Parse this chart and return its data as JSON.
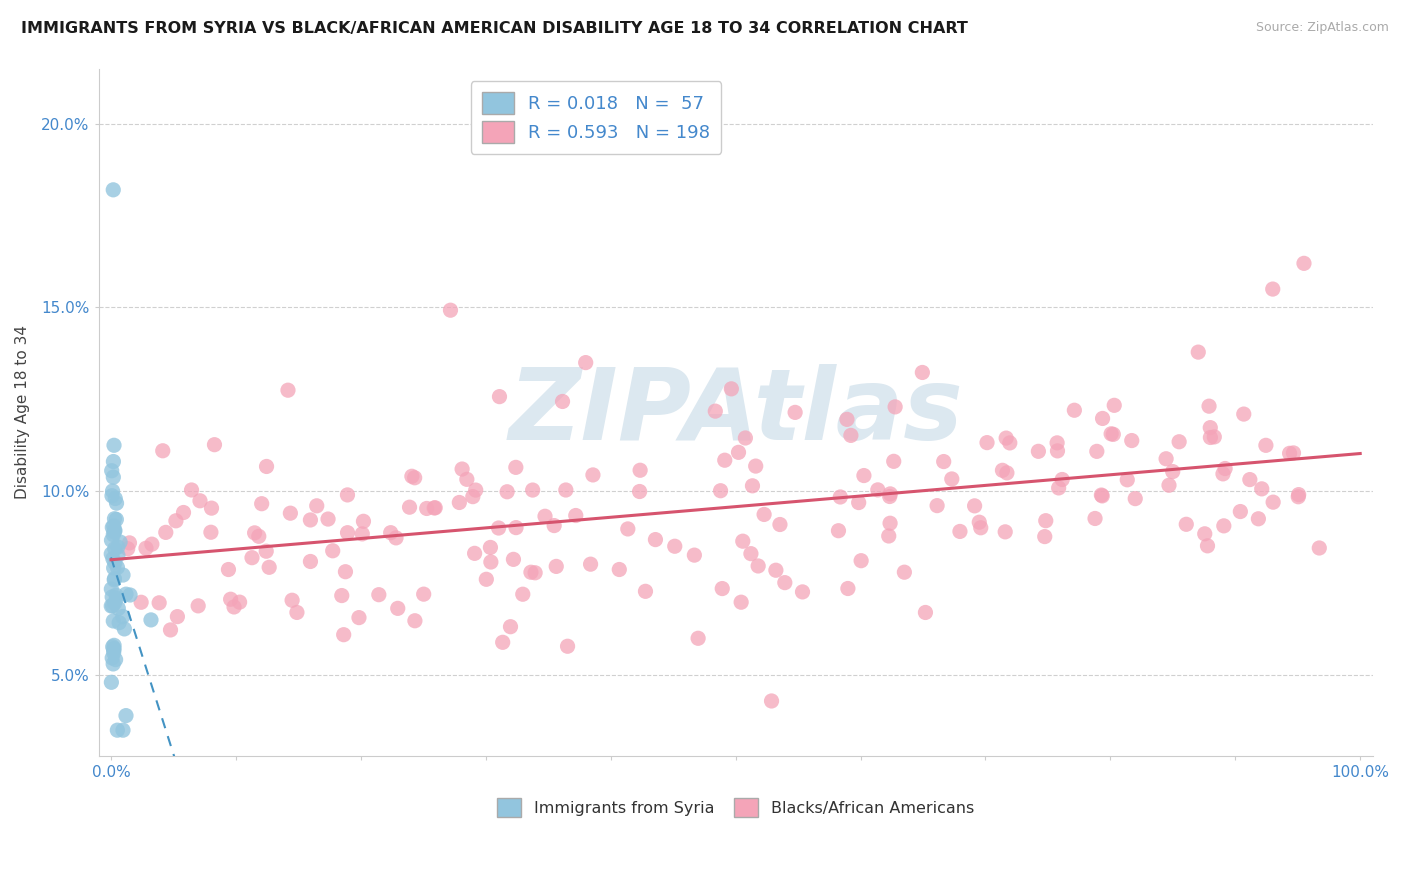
{
  "title": "IMMIGRANTS FROM SYRIA VS BLACK/AFRICAN AMERICAN DISABILITY AGE 18 TO 34 CORRELATION CHART",
  "source_text": "Source: ZipAtlas.com",
  "ylabel": "Disability Age 18 to 34",
  "xlim": [
    -0.01,
    1.01
  ],
  "ylim": [
    0.028,
    0.215
  ],
  "yticks": [
    0.05,
    0.1,
    0.15,
    0.2
  ],
  "ytick_labels": [
    "5.0%",
    "10.0%",
    "15.0%",
    "20.0%"
  ],
  "xticks": [
    0.0,
    0.1,
    0.2,
    0.3,
    0.4,
    0.5,
    0.6,
    0.7,
    0.8,
    0.9,
    1.0
  ],
  "xtick_labels": [
    "0.0%",
    "",
    "",
    "",
    "",
    "",
    "",
    "",
    "",
    "",
    "100.0%"
  ],
  "blue_color": "#92c5de",
  "blue_line_color": "#4393c3",
  "pink_color": "#f4a4b8",
  "pink_line_color": "#d6546e",
  "blue_R": 0.018,
  "blue_N": 57,
  "pink_R": 0.593,
  "pink_N": 198,
  "legend_label_blue": "Immigrants from Syria",
  "legend_label_pink": "Blacks/African Americans",
  "title_color": "#1a1a1a",
  "axis_tick_color": "#4488cc",
  "watermark_text": "ZIPAtlas",
  "watermark_color": "#dce8f0"
}
